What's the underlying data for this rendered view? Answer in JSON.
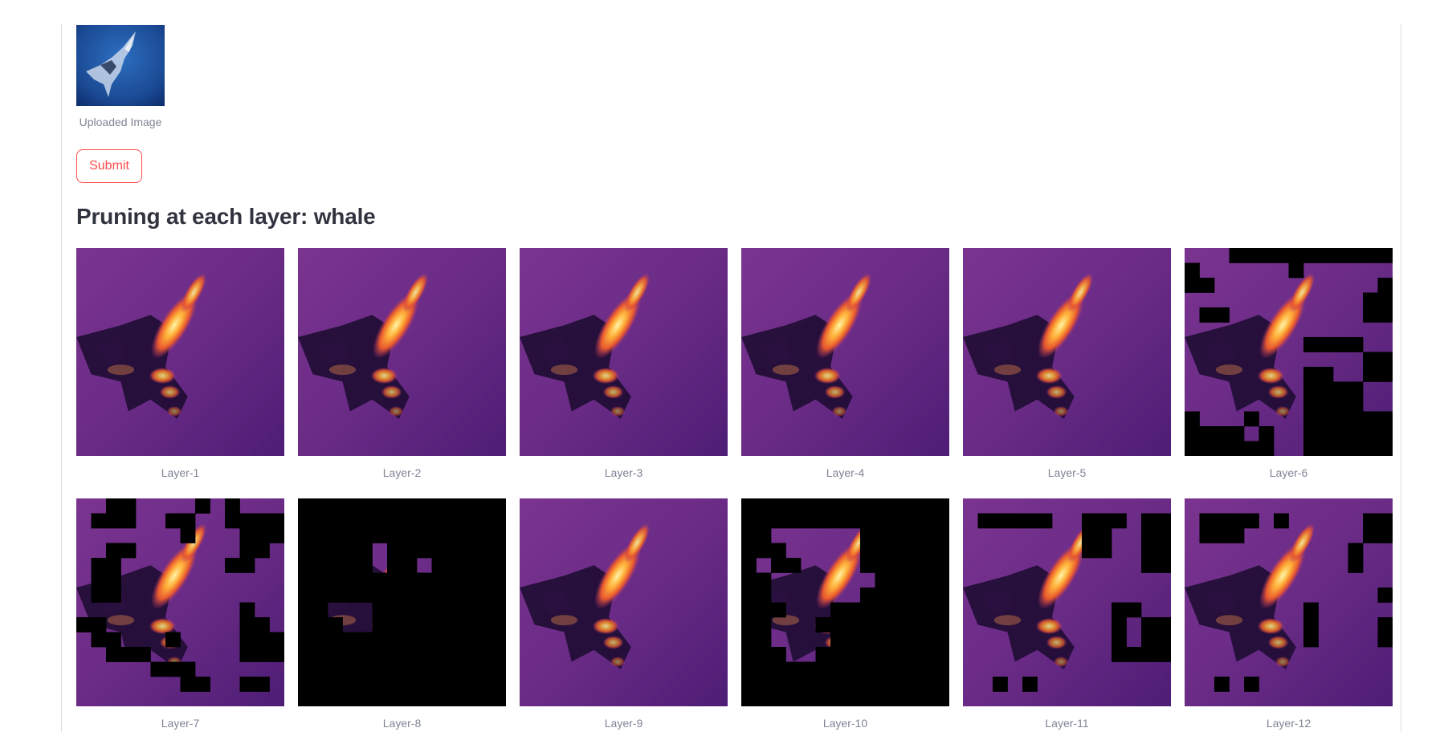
{
  "uploaded_image": {
    "caption": "Uploaded Image"
  },
  "submit_label": "Submit",
  "heading": "Pruning at each layer: whale",
  "layers": [
    {
      "label": "Layer-1"
    },
    {
      "label": "Layer-2"
    },
    {
      "label": "Layer-3"
    },
    {
      "label": "Layer-4"
    },
    {
      "label": "Layer-5"
    },
    {
      "label": "Layer-6"
    },
    {
      "label": "Layer-7"
    },
    {
      "label": "Layer-8"
    },
    {
      "label": "Layer-9"
    },
    {
      "label": "Layer-10"
    },
    {
      "label": "Layer-11"
    },
    {
      "label": "Layer-12"
    }
  ],
  "colors": {
    "accent": "#ff4b4b",
    "caption": "#808495",
    "text": "#31333f",
    "heatmap_bg": "#6e2f8a",
    "heatmap_hot": "#ffd35a",
    "pruned": "#000000"
  }
}
